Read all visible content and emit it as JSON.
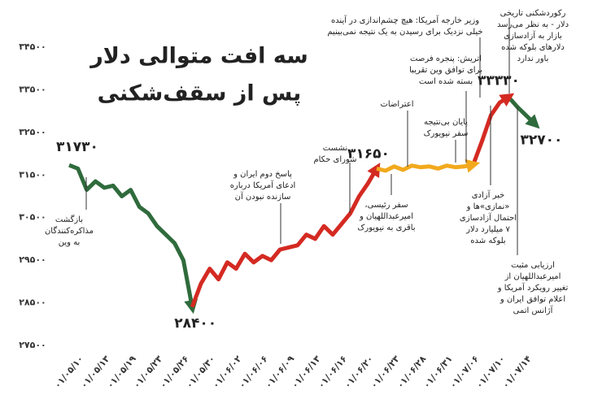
{
  "chart_data": {
    "type": "line",
    "title": [
      "سه افت متوالی دلار",
      "پس از سقف‌شکنی"
    ],
    "categories": [
      "۰۱/۰۵/۱۰",
      null,
      null,
      "۰۱/۰۵/۱۳",
      null,
      null,
      "۰۱/۰۵/۱۹",
      null,
      null,
      "۰۱/۰۵/۲۳",
      null,
      null,
      "۰۱/۰۵/۲۶",
      null,
      null,
      "۰۱/۰۵/۳۰",
      null,
      null,
      "۰۱/۰۶/۰۲",
      null,
      null,
      "۰۱/۰۶/۰۶",
      null,
      null,
      "۰۱/۰۶/۰۹",
      null,
      null,
      "۰۱/۰۶/۱۳",
      null,
      null,
      "۰۱/۰۶/۱۶",
      null,
      null,
      "۰۱/۰۶/۲۰",
      null,
      null,
      "۰۱/۰۶/۲۳",
      null,
      null,
      "۰۱/۰۶/۲۸",
      null,
      null,
      "۰۱/۰۶/۳۱",
      null,
      null,
      "۰۱/۰۷/۰۶",
      null,
      null,
      "۰۱/۰۷/۱۰",
      null,
      null,
      "۰۱/۰۷/۱۴",
      null,
      null
    ],
    "series": [
      {
        "color": "#2f6b3c",
        "values": [
          31730,
          31650,
          31150,
          31350,
          31200,
          31250,
          31000,
          31150,
          30750,
          30600,
          30300,
          30100,
          29900,
          29500,
          28400,
          null,
          null,
          null,
          null,
          null,
          null,
          null,
          null,
          null,
          null,
          null,
          null,
          null,
          null,
          null,
          null,
          null,
          null,
          null,
          null,
          null,
          null,
          null,
          null,
          null,
          null,
          null,
          null,
          null,
          null,
          null,
          null,
          null,
          null,
          null,
          33330,
          33100,
          32900,
          32700
        ],
        "value_labels": [
          "۳۱۷۳۰",
          null,
          null,
          null,
          null,
          null,
          null,
          null,
          null,
          null,
          null,
          null,
          null,
          null,
          "۲۸۴۰۰",
          null,
          null,
          null,
          null,
          null,
          null,
          null,
          null,
          null,
          null,
          null,
          null,
          null,
          null,
          null,
          null,
          null,
          null,
          null,
          null,
          null,
          null,
          null,
          null,
          null,
          null,
          null,
          null,
          null,
          null,
          null,
          null,
          null,
          null,
          null,
          "۳۳۳۳۰",
          null,
          null,
          "۳۲۷۰۰"
        ]
      },
      {
        "color": "#d42a22",
        "values": [
          null,
          null,
          null,
          null,
          null,
          null,
          null,
          null,
          null,
          null,
          null,
          null,
          null,
          null,
          28400,
          28950,
          29300,
          29050,
          29450,
          29300,
          29650,
          29450,
          29600,
          29500,
          29750,
          29800,
          29850,
          30100,
          30000,
          30300,
          30100,
          30350,
          30600,
          31000,
          31300,
          31650,
          null,
          null,
          null,
          null,
          null,
          null,
          null,
          null,
          null,
          null,
          31750,
          32300,
          32900,
          33200,
          33330,
          null,
          null,
          null
        ],
        "value_labels": [
          null,
          null,
          null,
          null,
          null,
          null,
          null,
          null,
          null,
          null,
          null,
          null,
          null,
          null,
          null,
          null,
          null,
          null,
          null,
          null,
          null,
          null,
          null,
          null,
          null,
          null,
          null,
          null,
          null,
          null,
          null,
          null,
          null,
          null,
          null,
          "۳۱۶۵۰",
          null,
          null,
          null,
          null,
          null,
          null,
          null,
          null,
          null,
          null,
          null,
          null,
          null,
          null,
          null,
          null,
          null,
          null
        ]
      },
      {
        "color": "#f2a91d",
        "values": [
          null,
          null,
          null,
          null,
          null,
          null,
          null,
          null,
          null,
          null,
          null,
          null,
          null,
          null,
          null,
          null,
          null,
          null,
          null,
          null,
          null,
          null,
          null,
          null,
          null,
          null,
          null,
          null,
          null,
          null,
          null,
          null,
          null,
          null,
          null,
          31650,
          31600,
          31700,
          31620,
          31720,
          31680,
          31700,
          31650,
          31720,
          31680,
          31700,
          31750,
          null,
          null,
          null,
          null,
          null,
          null,
          null
        ]
      }
    ],
    "ylim": [
      27500,
      34500
    ],
    "yticks": [
      {
        "value": 27500,
        "label": "۲۷۵۰۰"
      },
      {
        "value": 28500,
        "label": "۲۸۵۰۰"
      },
      {
        "value": 29500,
        "label": "۲۹۵۰۰"
      },
      {
        "value": 30500,
        "label": "۳۰۵۰۰"
      },
      {
        "value": 31500,
        "label": "۳۱۵۰۰"
      },
      {
        "value": 32500,
        "label": "۳۲۵۰۰"
      },
      {
        "value": 33500,
        "label": "۳۳۵۰۰"
      },
      {
        "value": 34500,
        "label": "۳۴۵۰۰"
      }
    ],
    "grid": false,
    "annotations": [
      [
        "بازگشت",
        "مذاکره‌کنندگان",
        "به وین"
      ],
      [
        "پاسخ دوم ایران و",
        "ادعای آمریکا درباره",
        "سازنده نبودن آن"
      ],
      [
        "نشست",
        "شورای حکام"
      ],
      [
        "سفر رئیسی،",
        "امیرعبداللهیان و",
        "باقری به نیویورک"
      ],
      [
        "اعتراضات"
      ],
      [
        "پایان بی‌نتیجه",
        "سفر نیویورک"
      ],
      [
        "اتریش: پنجره فرصت",
        "برای توافق وین تقریبا",
        "بسته شده است"
      ],
      [
        "وزیر خارجه آمریکا: هیچ چشم‌اندازی در آینده",
        "خیلی نزدیک برای رسیدن به یک نتیجه نمی‌بینیم"
      ],
      [
        "خبر آزادی",
        "«نمازی»ها و",
        "احتمال آزادسازی",
        "۷ میلیارد دلار",
        "بلوکه شده"
      ],
      [
        "رکوردشکنی تاریخی",
        "دلار - به نظر می‌رسد",
        "بازار به آزادسازی",
        "دلارهای بلوکه شده",
        "باور ندارد"
      ],
      [
        "ارزیابی مثبت",
        "امیرعبداللهیان از",
        "تغییر رویکرد آمریکا و",
        "اعلام توافق ایران و",
        "آژانس اتمی"
      ]
    ]
  }
}
